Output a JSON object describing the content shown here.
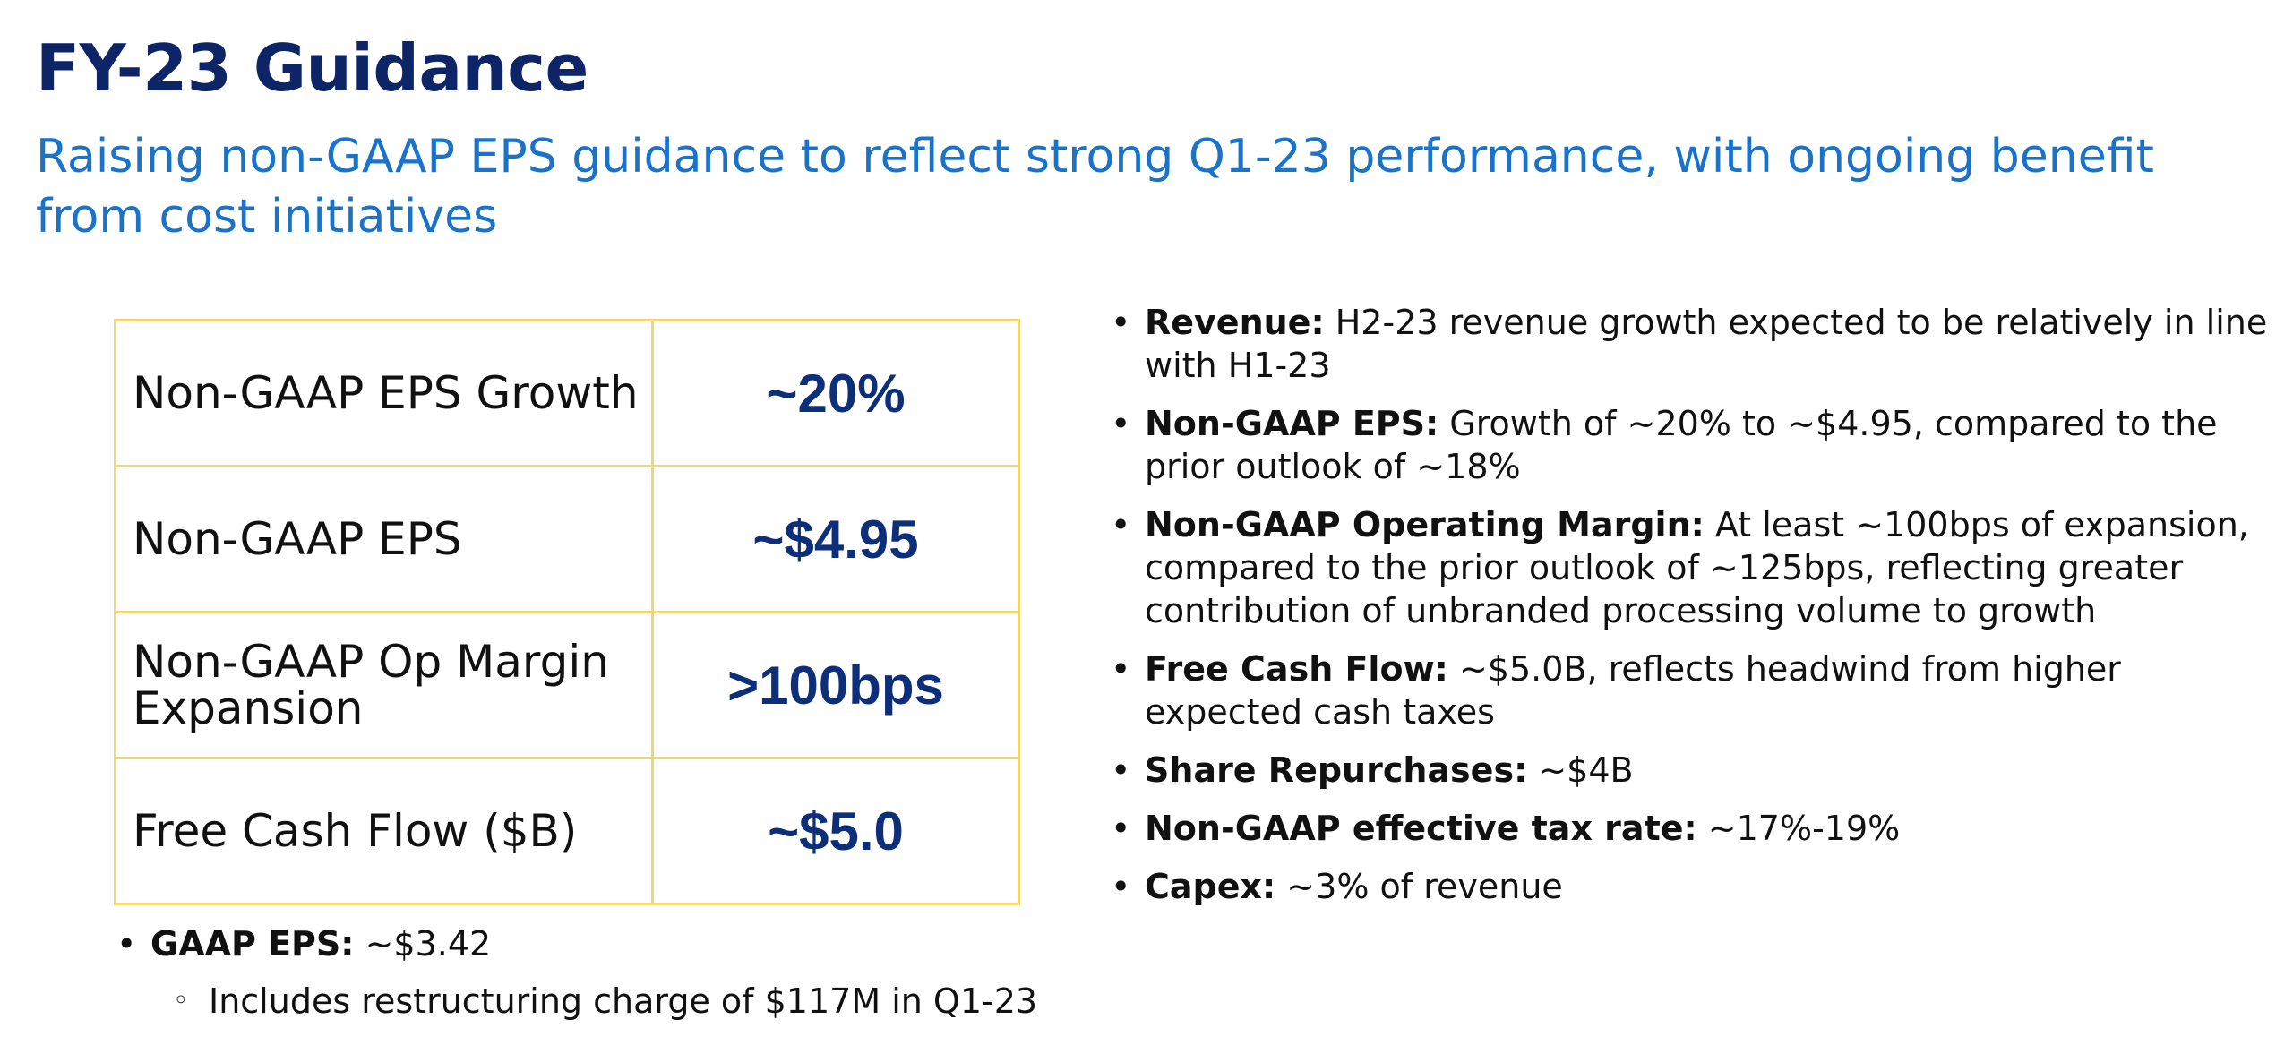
{
  "title": "FY-23 Guidance",
  "subtitle": "Raising non-GAAP EPS guidance to reflect strong Q1-23 performance, with ongoing benefit from cost initiatives",
  "table": {
    "rows": [
      {
        "label": "Non-GAAP EPS Growth",
        "value": "~20%"
      },
      {
        "label": "Non-GAAP EPS",
        "value": "~$4.95"
      },
      {
        "label": "Non-GAAP Op Margin Expansion",
        "value": ">100bps"
      },
      {
        "label": "Free Cash Flow ($B)",
        "value": "~$5.0"
      }
    ]
  },
  "left_bullets": [
    {
      "label": "GAAP EPS:",
      "text": " ~$3.42"
    }
  ],
  "left_sub_bullets": [
    {
      "text": "Includes restructuring charge of $117M in Q1-23"
    }
  ],
  "right_bullets": [
    {
      "label": "Revenue:",
      "text": " H2-23 revenue growth expected to be relatively in line with H1-23"
    },
    {
      "label": "Non-GAAP EPS:",
      "text": " Growth of ~20% to ~$4.95, compared to the prior outlook of ~18%"
    },
    {
      "label": "Non-GAAP Operating Margin:",
      "text": " At least ~100bps of expansion, compared to the prior outlook of ~125bps, reflecting greater contribution of unbranded processing volume to growth"
    },
    {
      "label": "Free Cash Flow:",
      "text": " ~$5.0B, reflects headwind from higher expected cash taxes"
    },
    {
      "label": "Share Repurchases:",
      "text": " ~$4B"
    },
    {
      "label": "Non-GAAP effective tax rate:",
      "text": " ~17%-19%"
    },
    {
      "label": "Capex:",
      "text": " ~3% of revenue"
    }
  ],
  "colors": {
    "title": "#0d2466",
    "subtitle": "#1a73c8",
    "table_border": "#f1d675",
    "table_value": "#0d2f7a"
  }
}
